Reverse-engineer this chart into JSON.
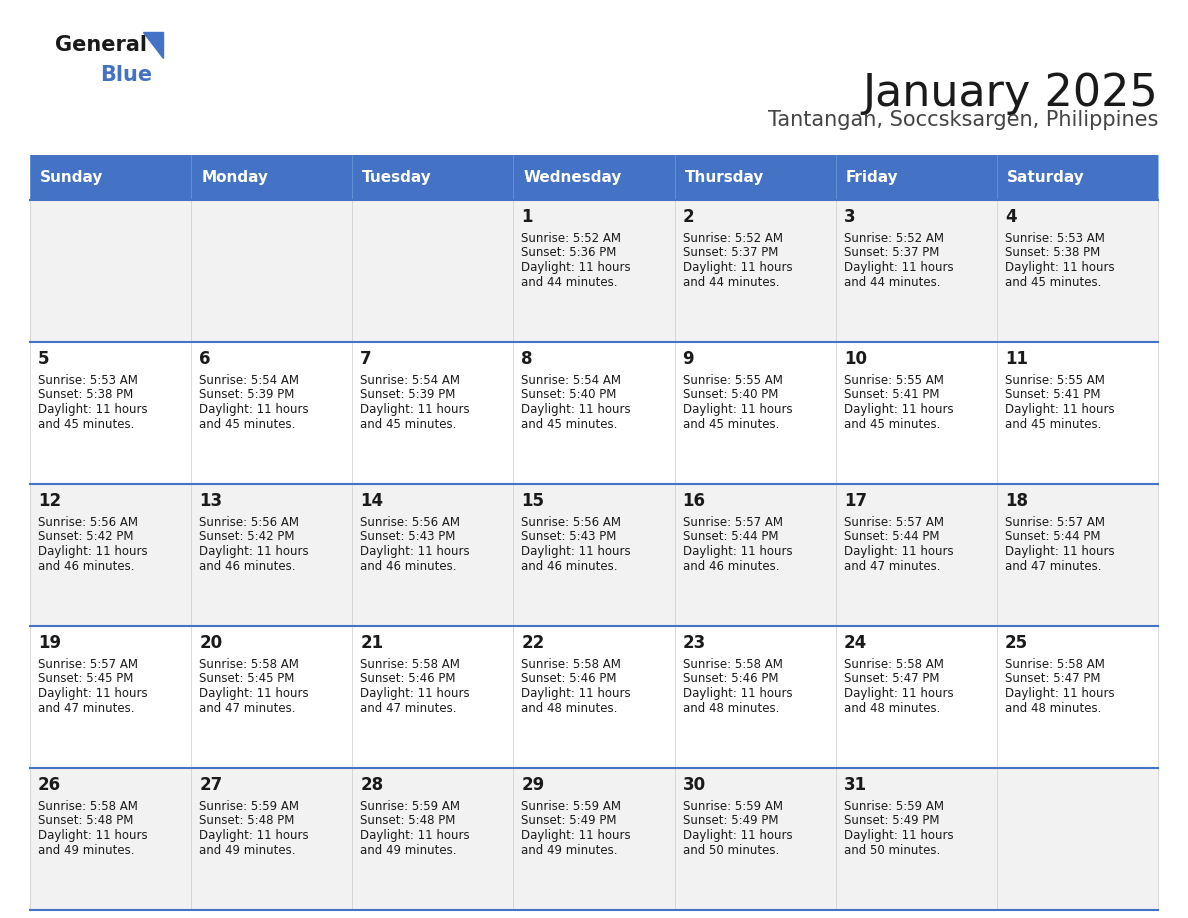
{
  "title": "January 2025",
  "subtitle": "Tantangan, Soccsksargen, Philippines",
  "header_bg": "#4472C4",
  "header_text": "#FFFFFF",
  "row_bg_odd": "#F2F2F2",
  "row_bg_even": "#FFFFFF",
  "cell_border": "#4472C4",
  "day_names": [
    "Sunday",
    "Monday",
    "Tuesday",
    "Wednesday",
    "Thursday",
    "Friday",
    "Saturday"
  ],
  "days": [
    {
      "day": 1,
      "col": 3,
      "row": 0,
      "sunrise": "5:52 AM",
      "sunset": "5:36 PM",
      "daylight": "11 hours and 44 minutes."
    },
    {
      "day": 2,
      "col": 4,
      "row": 0,
      "sunrise": "5:52 AM",
      "sunset": "5:37 PM",
      "daylight": "11 hours and 44 minutes."
    },
    {
      "day": 3,
      "col": 5,
      "row": 0,
      "sunrise": "5:52 AM",
      "sunset": "5:37 PM",
      "daylight": "11 hours and 44 minutes."
    },
    {
      "day": 4,
      "col": 6,
      "row": 0,
      "sunrise": "5:53 AM",
      "sunset": "5:38 PM",
      "daylight": "11 hours and 45 minutes."
    },
    {
      "day": 5,
      "col": 0,
      "row": 1,
      "sunrise": "5:53 AM",
      "sunset": "5:38 PM",
      "daylight": "11 hours and 45 minutes."
    },
    {
      "day": 6,
      "col": 1,
      "row": 1,
      "sunrise": "5:54 AM",
      "sunset": "5:39 PM",
      "daylight": "11 hours and 45 minutes."
    },
    {
      "day": 7,
      "col": 2,
      "row": 1,
      "sunrise": "5:54 AM",
      "sunset": "5:39 PM",
      "daylight": "11 hours and 45 minutes."
    },
    {
      "day": 8,
      "col": 3,
      "row": 1,
      "sunrise": "5:54 AM",
      "sunset": "5:40 PM",
      "daylight": "11 hours and 45 minutes."
    },
    {
      "day": 9,
      "col": 4,
      "row": 1,
      "sunrise": "5:55 AM",
      "sunset": "5:40 PM",
      "daylight": "11 hours and 45 minutes."
    },
    {
      "day": 10,
      "col": 5,
      "row": 1,
      "sunrise": "5:55 AM",
      "sunset": "5:41 PM",
      "daylight": "11 hours and 45 minutes."
    },
    {
      "day": 11,
      "col": 6,
      "row": 1,
      "sunrise": "5:55 AM",
      "sunset": "5:41 PM",
      "daylight": "11 hours and 45 minutes."
    },
    {
      "day": 12,
      "col": 0,
      "row": 2,
      "sunrise": "5:56 AM",
      "sunset": "5:42 PM",
      "daylight": "11 hours and 46 minutes."
    },
    {
      "day": 13,
      "col": 1,
      "row": 2,
      "sunrise": "5:56 AM",
      "sunset": "5:42 PM",
      "daylight": "11 hours and 46 minutes."
    },
    {
      "day": 14,
      "col": 2,
      "row": 2,
      "sunrise": "5:56 AM",
      "sunset": "5:43 PM",
      "daylight": "11 hours and 46 minutes."
    },
    {
      "day": 15,
      "col": 3,
      "row": 2,
      "sunrise": "5:56 AM",
      "sunset": "5:43 PM",
      "daylight": "11 hours and 46 minutes."
    },
    {
      "day": 16,
      "col": 4,
      "row": 2,
      "sunrise": "5:57 AM",
      "sunset": "5:44 PM",
      "daylight": "11 hours and 46 minutes."
    },
    {
      "day": 17,
      "col": 5,
      "row": 2,
      "sunrise": "5:57 AM",
      "sunset": "5:44 PM",
      "daylight": "11 hours and 47 minutes."
    },
    {
      "day": 18,
      "col": 6,
      "row": 2,
      "sunrise": "5:57 AM",
      "sunset": "5:44 PM",
      "daylight": "11 hours and 47 minutes."
    },
    {
      "day": 19,
      "col": 0,
      "row": 3,
      "sunrise": "5:57 AM",
      "sunset": "5:45 PM",
      "daylight": "11 hours and 47 minutes."
    },
    {
      "day": 20,
      "col": 1,
      "row": 3,
      "sunrise": "5:58 AM",
      "sunset": "5:45 PM",
      "daylight": "11 hours and 47 minutes."
    },
    {
      "day": 21,
      "col": 2,
      "row": 3,
      "sunrise": "5:58 AM",
      "sunset": "5:46 PM",
      "daylight": "11 hours and 47 minutes."
    },
    {
      "day": 22,
      "col": 3,
      "row": 3,
      "sunrise": "5:58 AM",
      "sunset": "5:46 PM",
      "daylight": "11 hours and 48 minutes."
    },
    {
      "day": 23,
      "col": 4,
      "row": 3,
      "sunrise": "5:58 AM",
      "sunset": "5:46 PM",
      "daylight": "11 hours and 48 minutes."
    },
    {
      "day": 24,
      "col": 5,
      "row": 3,
      "sunrise": "5:58 AM",
      "sunset": "5:47 PM",
      "daylight": "11 hours and 48 minutes."
    },
    {
      "day": 25,
      "col": 6,
      "row": 3,
      "sunrise": "5:58 AM",
      "sunset": "5:47 PM",
      "daylight": "11 hours and 48 minutes."
    },
    {
      "day": 26,
      "col": 0,
      "row": 4,
      "sunrise": "5:58 AM",
      "sunset": "5:48 PM",
      "daylight": "11 hours and 49 minutes."
    },
    {
      "day": 27,
      "col": 1,
      "row": 4,
      "sunrise": "5:59 AM",
      "sunset": "5:48 PM",
      "daylight": "11 hours and 49 minutes."
    },
    {
      "day": 28,
      "col": 2,
      "row": 4,
      "sunrise": "5:59 AM",
      "sunset": "5:48 PM",
      "daylight": "11 hours and 49 minutes."
    },
    {
      "day": 29,
      "col": 3,
      "row": 4,
      "sunrise": "5:59 AM",
      "sunset": "5:49 PM",
      "daylight": "11 hours and 49 minutes."
    },
    {
      "day": 30,
      "col": 4,
      "row": 4,
      "sunrise": "5:59 AM",
      "sunset": "5:49 PM",
      "daylight": "11 hours and 50 minutes."
    },
    {
      "day": 31,
      "col": 5,
      "row": 4,
      "sunrise": "5:59 AM",
      "sunset": "5:49 PM",
      "daylight": "11 hours and 50 minutes."
    }
  ],
  "logo_text_general": "General",
  "logo_text_blue": "Blue",
  "logo_color_general": "#1a1a1a",
  "logo_color_blue": "#4472C4",
  "title_fontsize": 32,
  "subtitle_fontsize": 15,
  "day_name_fontsize": 11,
  "day_num_fontsize": 12,
  "info_fontsize": 8.5
}
